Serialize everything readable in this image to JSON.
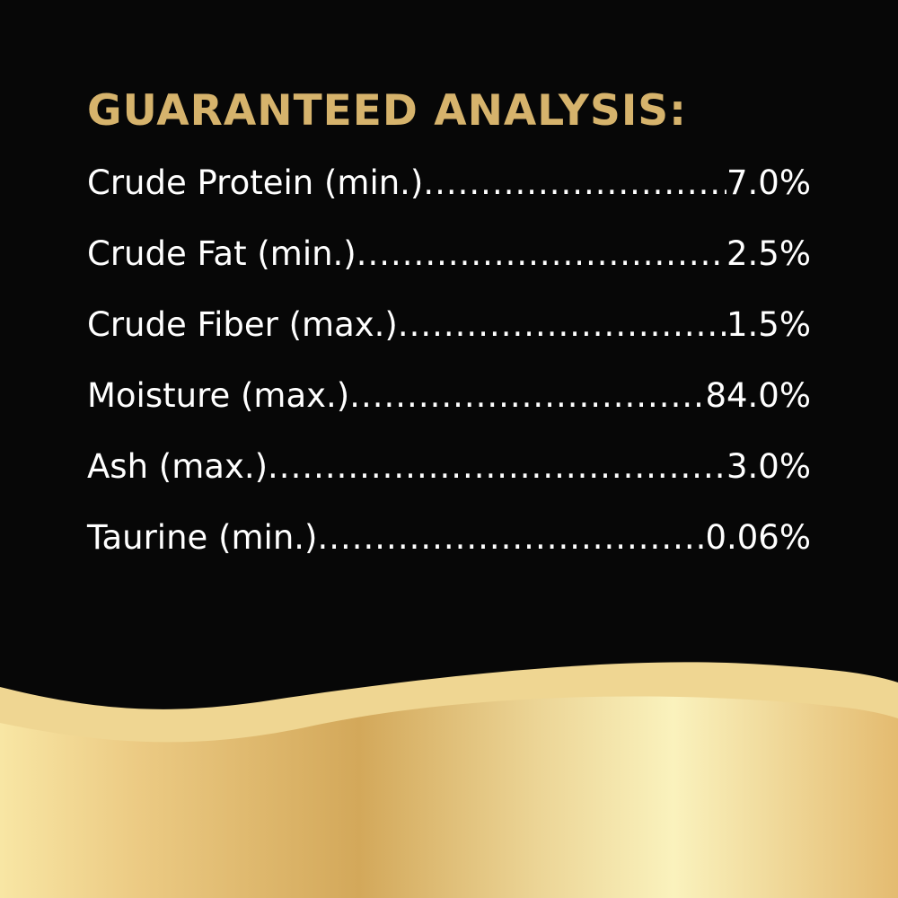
{
  "title": "GUARANTEED ANALYSIS:",
  "rows": [
    {
      "label": "Crude Protein (min.)",
      "value": "7.0%"
    },
    {
      "label": "Crude Fat (min.)",
      "value": "2.5%"
    },
    {
      "label": "Crude Fiber (max.)",
      "value": "1.5%"
    },
    {
      "label": "Moisture (max.)",
      "value": "84.0%"
    },
    {
      "label": "Ash (max.)",
      "value": "3.0%"
    },
    {
      "label": "Taurine (min.)",
      "value": "0.06%"
    }
  ],
  "colors": {
    "background": "#070707",
    "title": "#d6b36c",
    "text": "#ffffff",
    "gold_light": "#f0d896",
    "gold_dark": "#d2a85a"
  }
}
